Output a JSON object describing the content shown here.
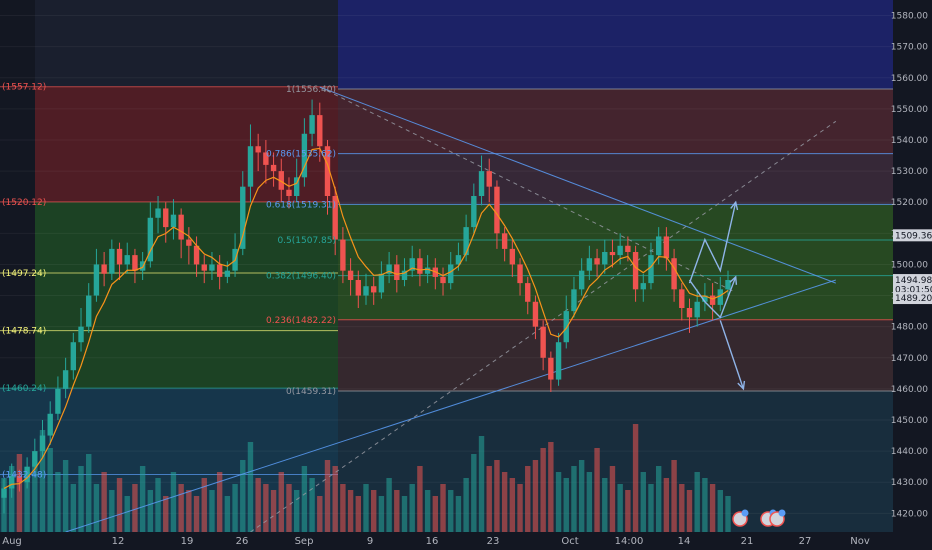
{
  "chart_data": {
    "type": "candlestick",
    "title": "",
    "xlabel": "",
    "ylabel": "",
    "ylim": [
      1414,
      1585
    ],
    "y_ticks": [
      1420,
      1430,
      1440,
      1450,
      1460,
      1470,
      1480,
      1490,
      1500,
      1510,
      1520,
      1530,
      1540,
      1550,
      1560,
      1570,
      1580
    ],
    "x_ticks": [
      "Aug",
      "12",
      "19",
      "26",
      "Sep",
      "9",
      "16",
      "23",
      "Oct",
      "14:00",
      "14",
      "21",
      "27",
      "Nov"
    ],
    "colors": {
      "background": "#131722",
      "up": "#26a69a",
      "down": "#ef5350",
      "ema": "#f7931a",
      "fib_line": "#9598a1",
      "trend": "#5b9cf6",
      "axis_text": "#b2b5be"
    },
    "price_tags": [
      {
        "value": 1509.36,
        "label": "1509.36",
        "bg": "#d1d4dc",
        "fg": "#131722"
      },
      {
        "value": 1494.98,
        "label": "1494.98",
        "bg": "#d1d4dc",
        "fg": "#131722"
      },
      {
        "value": 1492.0,
        "label": "03:01:50",
        "bg": "#d1d4dc",
        "fg": "#131722"
      },
      {
        "value": 1489.2,
        "label": "1489.20",
        "bg": "#d1d4dc",
        "fg": "#131722"
      }
    ],
    "fib_left": {
      "levels": [
        {
          "value": 1557.12,
          "label": "(1557.12)",
          "color": "#ef5350"
        },
        {
          "value": 1520.12,
          "label": "(1520.12)",
          "color": "#ef5350"
        },
        {
          "value": 1497.24,
          "label": "(1497.24)",
          "color": "#f5f57a"
        },
        {
          "value": 1478.74,
          "label": "(1478.74)",
          "color": "#f5f57a"
        },
        {
          "value": 1460.24,
          "label": "(1460.24)",
          "color": "#26a69a"
        },
        {
          "value": 1432.48,
          "label": "(1432.48)",
          "color": "#5b9cf6"
        }
      ]
    },
    "fib_right": {
      "levels": [
        {
          "value": 1556.4,
          "label": "1(1556.40)",
          "color": "#9598a1"
        },
        {
          "value": 1535.62,
          "label": "0.786(1535.62)",
          "color": "#5b9cf6"
        },
        {
          "value": 1519.31,
          "label": "0.618(1519.31)",
          "color": "#5b9cf6"
        },
        {
          "value": 1507.85,
          "label": "0.5(1507.85)",
          "color": "#26a69a"
        },
        {
          "value": 1496.4,
          "label": "0.382(1496.40)",
          "color": "#26a69a"
        },
        {
          "value": 1482.22,
          "label": "0.236(1482.22)",
          "color": "#ef5350"
        },
        {
          "value": 1459.31,
          "label": "0(1459.31)",
          "color": "#9598a1"
        }
      ]
    },
    "candles_open_close_high_low": [
      [
        1425,
        1428,
        1431,
        1420
      ],
      [
        1428,
        1432,
        1436,
        1425
      ],
      [
        1432,
        1430,
        1434,
        1427
      ],
      [
        1430,
        1435,
        1438,
        1428
      ],
      [
        1435,
        1440,
        1444,
        1432
      ],
      [
        1440,
        1445,
        1450,
        1438
      ],
      [
        1445,
        1452,
        1456,
        1442
      ],
      [
        1452,
        1460,
        1464,
        1450
      ],
      [
        1460,
        1466,
        1470,
        1457
      ],
      [
        1466,
        1475,
        1478,
        1463
      ],
      [
        1475,
        1480,
        1486,
        1472
      ],
      [
        1480,
        1490,
        1494,
        1478
      ],
      [
        1490,
        1500,
        1505,
        1488
      ],
      [
        1500,
        1497,
        1504,
        1493
      ],
      [
        1497,
        1505,
        1508,
        1495
      ],
      [
        1505,
        1500,
        1507,
        1495
      ],
      [
        1500,
        1503,
        1507,
        1497
      ],
      [
        1503,
        1498,
        1505,
        1494
      ],
      [
        1498,
        1501,
        1504,
        1495
      ],
      [
        1501,
        1515,
        1520,
        1499
      ],
      [
        1515,
        1518,
        1522,
        1510
      ],
      [
        1518,
        1512,
        1520,
        1507
      ],
      [
        1512,
        1516,
        1521,
        1508
      ],
      [
        1516,
        1508,
        1518,
        1502
      ],
      [
        1508,
        1506,
        1512,
        1500
      ],
      [
        1506,
        1500,
        1509,
        1496
      ],
      [
        1500,
        1498,
        1503,
        1494
      ],
      [
        1498,
        1500,
        1504,
        1495
      ],
      [
        1500,
        1496,
        1503,
        1492
      ],
      [
        1496,
        1498,
        1501,
        1494
      ],
      [
        1498,
        1505,
        1510,
        1496
      ],
      [
        1505,
        1525,
        1530,
        1503
      ],
      [
        1525,
        1538,
        1545,
        1520
      ],
      [
        1538,
        1536,
        1542,
        1530
      ],
      [
        1536,
        1532,
        1540,
        1526
      ],
      [
        1532,
        1530,
        1536,
        1525
      ],
      [
        1530,
        1524,
        1534,
        1520
      ],
      [
        1524,
        1522,
        1528,
        1518
      ],
      [
        1522,
        1528,
        1534,
        1520
      ],
      [
        1528,
        1542,
        1547,
        1525
      ],
      [
        1542,
        1548,
        1553,
        1538
      ],
      [
        1548,
        1538,
        1552,
        1533
      ],
      [
        1538,
        1522,
        1540,
        1516
      ],
      [
        1522,
        1508,
        1525,
        1503
      ],
      [
        1508,
        1498,
        1512,
        1494
      ],
      [
        1498,
        1495,
        1502,
        1490
      ],
      [
        1495,
        1490,
        1498,
        1486
      ],
      [
        1490,
        1493,
        1497,
        1487
      ],
      [
        1493,
        1491,
        1496,
        1487
      ],
      [
        1491,
        1497,
        1501,
        1489
      ],
      [
        1497,
        1500,
        1504,
        1494
      ],
      [
        1500,
        1495,
        1503,
        1491
      ],
      [
        1495,
        1498,
        1502,
        1493
      ],
      [
        1498,
        1502,
        1506,
        1496
      ],
      [
        1502,
        1497,
        1505,
        1493
      ],
      [
        1497,
        1499,
        1503,
        1494
      ],
      [
        1499,
        1496,
        1502,
        1492
      ],
      [
        1496,
        1494,
        1499,
        1490
      ],
      [
        1494,
        1500,
        1504,
        1492
      ],
      [
        1500,
        1503,
        1507,
        1498
      ],
      [
        1503,
        1512,
        1516,
        1501
      ],
      [
        1512,
        1522,
        1526,
        1510
      ],
      [
        1522,
        1530,
        1535,
        1519
      ],
      [
        1530,
        1525,
        1534,
        1520
      ],
      [
        1525,
        1510,
        1527,
        1505
      ],
      [
        1510,
        1505,
        1512,
        1501
      ],
      [
        1505,
        1500,
        1508,
        1496
      ],
      [
        1500,
        1494,
        1502,
        1490
      ],
      [
        1494,
        1488,
        1496,
        1484
      ],
      [
        1488,
        1480,
        1490,
        1476
      ],
      [
        1480,
        1470,
        1482,
        1466
      ],
      [
        1470,
        1463,
        1472,
        1459
      ],
      [
        1463,
        1475,
        1478,
        1461
      ],
      [
        1475,
        1485,
        1490,
        1473
      ],
      [
        1485,
        1492,
        1496,
        1483
      ],
      [
        1492,
        1498,
        1502,
        1490
      ],
      [
        1498,
        1502,
        1506,
        1495
      ],
      [
        1502,
        1500,
        1505,
        1496
      ],
      [
        1500,
        1504,
        1508,
        1497
      ],
      [
        1504,
        1503,
        1508,
        1499
      ],
      [
        1503,
        1506,
        1510,
        1500
      ],
      [
        1506,
        1504,
        1509,
        1501
      ],
      [
        1504,
        1492,
        1506,
        1488
      ],
      [
        1492,
        1494,
        1497,
        1488
      ],
      [
        1494,
        1503,
        1507,
        1492
      ],
      [
        1503,
        1509,
        1512,
        1500
      ],
      [
        1509,
        1502,
        1512,
        1498
      ],
      [
        1502,
        1492,
        1505,
        1488
      ],
      [
        1492,
        1486,
        1494,
        1482
      ],
      [
        1486,
        1483,
        1489,
        1478
      ],
      [
        1483,
        1488,
        1492,
        1480
      ],
      [
        1488,
        1490,
        1494,
        1485
      ],
      [
        1490,
        1487,
        1494,
        1482
      ],
      [
        1487,
        1492,
        1496,
        1485
      ],
      [
        1492,
        1495,
        1498,
        1490
      ]
    ],
    "volume_relative": [
      0.45,
      0.55,
      0.65,
      0.5,
      0.6,
      0.85,
      0.7,
      0.5,
      0.6,
      0.4,
      0.55,
      0.65,
      0.4,
      0.5,
      0.35,
      0.45,
      0.3,
      0.4,
      0.55,
      0.35,
      0.45,
      0.3,
      0.5,
      0.4,
      0.35,
      0.3,
      0.45,
      0.35,
      0.5,
      0.3,
      0.4,
      0.6,
      0.75,
      0.45,
      0.4,
      0.35,
      0.5,
      0.4,
      0.35,
      0.55,
      0.45,
      0.3,
      0.6,
      0.55,
      0.4,
      0.35,
      0.3,
      0.4,
      0.35,
      0.3,
      0.45,
      0.35,
      0.3,
      0.4,
      0.55,
      0.35,
      0.3,
      0.4,
      0.35,
      0.3,
      0.45,
      0.65,
      0.8,
      0.55,
      0.6,
      0.5,
      0.45,
      0.4,
      0.55,
      0.6,
      0.7,
      0.75,
      0.5,
      0.45,
      0.55,
      0.6,
      0.5,
      0.7,
      0.45,
      0.55,
      0.4,
      0.35,
      0.9,
      0.5,
      0.4,
      0.55,
      0.45,
      0.6,
      0.4,
      0.35,
      0.5,
      0.45,
      0.4,
      0.35,
      0.3
    ],
    "ema_length_note": "",
    "trend_lines": [
      {
        "from": [
          41,
          1557
        ],
        "to": [
          95,
          1491
        ],
        "style": "dashed",
        "color": "#9598a1"
      },
      {
        "from": [
          41,
          1557
        ],
        "to": [
          108,
          1494
        ],
        "style": "solid",
        "color": "#5b9cf6"
      },
      {
        "from": [
          8,
          1414
        ],
        "to": [
          108,
          1495
        ],
        "style": "solid",
        "color": "#5b9cf6"
      },
      {
        "from": [
          32,
          1414
        ],
        "to": [
          108,
          1546
        ],
        "style": "dashed",
        "color": "#9598a1"
      }
    ],
    "projection_paths": [
      [
        [
          89,
          1494
        ],
        [
          91,
          1508
        ],
        [
          93,
          1498
        ],
        [
          95,
          1520
        ]
      ],
      [
        [
          89,
          1495
        ],
        [
          91,
          1488
        ],
        [
          93,
          1483
        ],
        [
          95,
          1496
        ]
      ],
      [
        [
          93,
          1482
        ],
        [
          96,
          1460
        ]
      ]
    ]
  }
}
